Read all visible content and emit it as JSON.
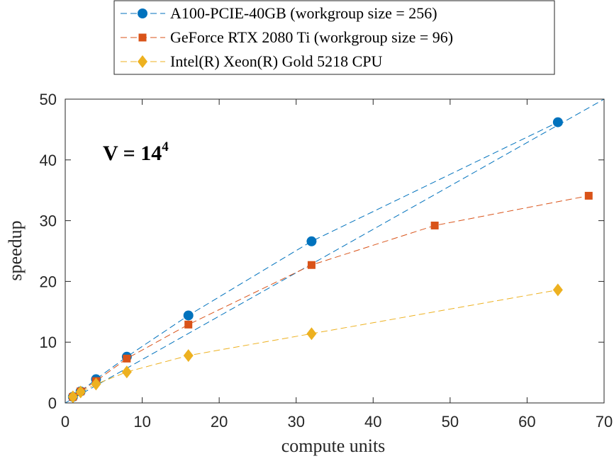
{
  "chart_data": {
    "type": "line",
    "xlabel": "compute units",
    "ylabel": "speedup",
    "xlim": [
      0,
      70
    ],
    "ylim": [
      0,
      50
    ],
    "xticks": [
      0,
      10,
      20,
      30,
      40,
      50,
      60,
      70
    ],
    "yticks": [
      0,
      10,
      20,
      30,
      40,
      50
    ],
    "grid": false,
    "legend_position": "top-center",
    "annotation": {
      "base": "V = 14",
      "exponent": "4"
    },
    "reference_line": {
      "x": [
        0,
        70
      ],
      "y": [
        0,
        50
      ],
      "color": "#0072BD"
    },
    "series": [
      {
        "name": "A100-PCIE-40GB (workgroup size = 256)",
        "color": "#0072BD",
        "marker": "circle",
        "x": [
          1,
          2,
          4,
          8,
          16,
          32,
          64
        ],
        "y": [
          1.0,
          1.9,
          3.9,
          7.6,
          14.4,
          26.6,
          46.2
        ]
      },
      {
        "name": "GeForce RTX 2080 Ti (workgroup size = 96)",
        "color": "#D95319",
        "marker": "square",
        "x": [
          1,
          2,
          4,
          8,
          16,
          32,
          48,
          68
        ],
        "y": [
          1.0,
          1.9,
          3.6,
          7.3,
          12.9,
          22.7,
          29.2,
          34.1
        ]
      },
      {
        "name": "Intel(R) Xeon(R) Gold 5218 CPU",
        "color": "#EDB120",
        "marker": "diamond",
        "x": [
          1,
          2,
          4,
          8,
          16,
          32,
          64
        ],
        "y": [
          1.0,
          1.8,
          3.1,
          5.1,
          7.8,
          11.4,
          18.6
        ]
      }
    ]
  }
}
